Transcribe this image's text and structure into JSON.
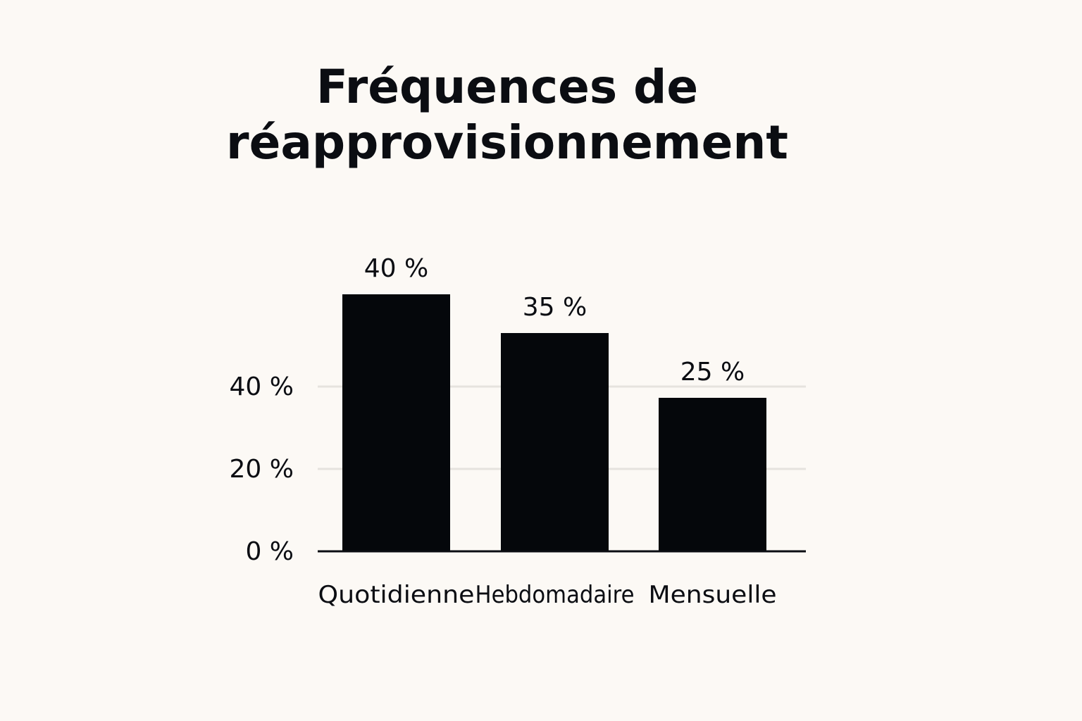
{
  "chart_data": {
    "type": "bar",
    "title_lines": [
      "Fréquences de",
      "réapprovisionnement"
    ],
    "categories": [
      "Quotidienne",
      "Hebdomadaire",
      "Mensuelle"
    ],
    "values": [
      40,
      35,
      25
    ],
    "value_labels": [
      "40 %",
      "35 %",
      "25 %"
    ],
    "y_ticks": [
      0,
      20,
      40
    ],
    "y_tick_labels": [
      "0 %",
      "20 %",
      "40 %"
    ],
    "ylim": [
      0,
      40
    ],
    "grid": true,
    "legend": "none",
    "colors": {
      "bar": "#05070b",
      "gridline": "#e6e3de",
      "axis": "#0b0d12",
      "background": "#fcf9f5"
    }
  }
}
